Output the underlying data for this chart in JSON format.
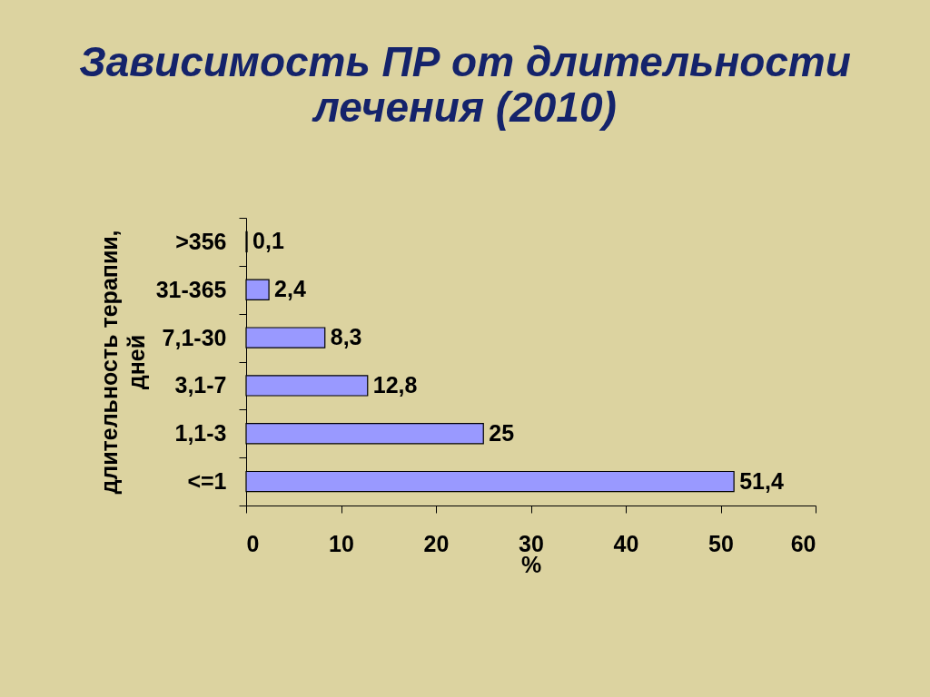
{
  "chart_data": {
    "type": "bar",
    "orientation": "horizontal",
    "title": "Зависимость ПР от длительности\nлечения (2010)",
    "xlabel": "%",
    "ylabel": "длительность терапии,\nдней",
    "categories": [
      ">356",
      "31-365",
      "7,1-30",
      "3,1-7",
      "1,1-3",
      "<=1"
    ],
    "values": [
      0.1,
      2.4,
      8.3,
      12.8,
      25,
      51.4
    ],
    "value_labels": [
      "0,1",
      "2,4",
      "8,3",
      "12,8",
      "25",
      "51,4"
    ],
    "color": "#9999ff",
    "xlim": [
      0,
      60
    ],
    "xticks": [
      0,
      10,
      20,
      30,
      40,
      50,
      60
    ],
    "grid": false
  }
}
